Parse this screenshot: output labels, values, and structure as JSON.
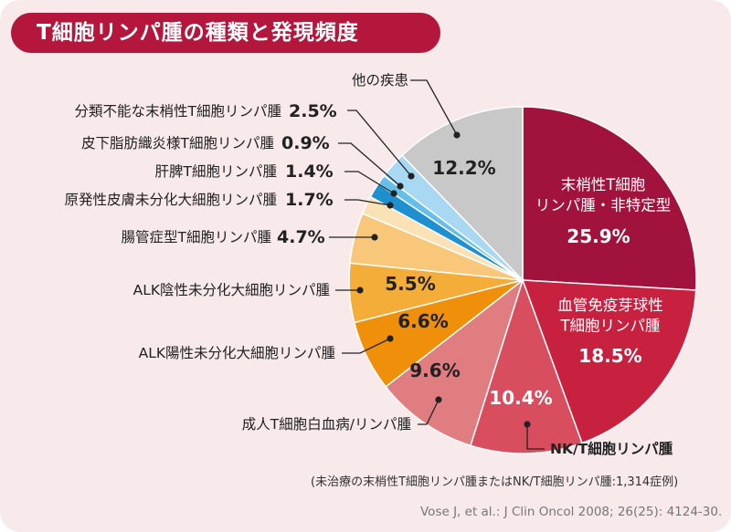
{
  "title": "T細胞リンパ腫の種類と発現頻度",
  "footnote": "(未治療の末梢性T細胞リンパ腫またはNK/T細胞リンパ腫:1,314症例)",
  "source": "Vose J, et al.: J Clin Oncol 2008; 26(25): 4124-30.",
  "chart_data": {
    "type": "pie",
    "slices": [
      {
        "label": "末梢性T細胞リンパ腫・非特定型",
        "lines": [
          "末梢性T細胞",
          "リンパ腫・非特定型"
        ],
        "value": 25.9,
        "value_label": "25.9%",
        "color": "#a1123c"
      },
      {
        "label": "血管免疫芽球性T細胞リンパ腫",
        "lines": [
          "血管免疫芽球性",
          "T細胞リンパ腫"
        ],
        "value": 18.5,
        "value_label": "18.5%",
        "color": "#c8213f"
      },
      {
        "label": "NK/T細胞リンパ腫",
        "value": 10.4,
        "value_label": "10.4%",
        "color": "#d84e5e"
      },
      {
        "label": "成人T細胞白血病/リンパ腫",
        "value": 9.6,
        "value_label": "9.6%",
        "color": "#e07d81"
      },
      {
        "label": "ALK陽性未分化大細胞リンパ腫",
        "value": 6.6,
        "value_label": "6.6%",
        "color": "#ef8f0a"
      },
      {
        "label": "ALK陰性未分化大細胞リンパ腫",
        "value": 5.5,
        "value_label": "5.5%",
        "color": "#f5ad3a"
      },
      {
        "label": "腸管症型T細胞リンパ腫",
        "value": 4.7,
        "value_label": "4.7%",
        "color": "#f8c77a"
      },
      {
        "label": "原発性皮膚未分化大細胞リンパ腫",
        "value": 1.7,
        "value_label": "1.7%",
        "color": "#fbe2b6"
      },
      {
        "label": "肝脾T細胞リンパ腫",
        "value": 1.4,
        "value_label": "1.4%",
        "color": "#1e8fcf"
      },
      {
        "label": "皮下脂肪織炎様T細胞リンパ腫",
        "value": 0.9,
        "value_label": "0.9%",
        "color": "#66bfe8"
      },
      {
        "label": "分類不能な末梢性T細胞リンパ腫",
        "value": 2.5,
        "value_label": "2.5%",
        "color": "#a8d8f2"
      },
      {
        "label": "他の疾患",
        "value": 12.2,
        "value_label": "12.2%",
        "color": "#c8c8c8"
      }
    ]
  }
}
